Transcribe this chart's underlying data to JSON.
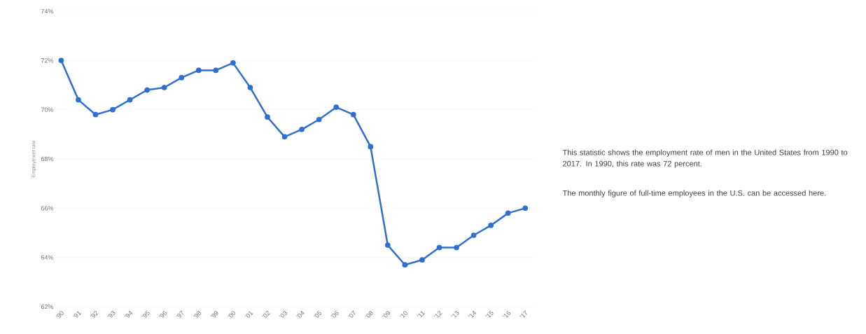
{
  "chart_data": {
    "type": "line",
    "ylabel": "Employment rate",
    "categories": [
      "'90",
      "'91",
      "'92",
      "'93",
      "'94",
      "'95",
      "'96",
      "'97",
      "'98",
      "'99",
      "'00",
      "'01",
      "'02",
      "'03",
      "'04",
      "'05",
      "'06",
      "'07",
      "'08",
      "'09",
      "'10",
      "'11",
      "'12",
      "'13",
      "'14",
      "'15",
      "'16",
      "'17"
    ],
    "series": [
      {
        "color": "#2f6fd0",
        "values": [
          72.0,
          70.4,
          69.8,
          70.0,
          70.4,
          70.8,
          70.9,
          71.3,
          71.6,
          71.6,
          71.9,
          70.9,
          69.7,
          68.9,
          69.2,
          69.6,
          70.1,
          69.8,
          68.5,
          64.5,
          63.7,
          63.9,
          64.4,
          64.4,
          64.9,
          65.3,
          65.8,
          66.0
        ]
      }
    ],
    "ylim": [
      62,
      74
    ],
    "yticks": [
      {
        "value": 62,
        "label": "62%"
      },
      {
        "value": 64,
        "label": "64%"
      },
      {
        "value": 66,
        "label": "66%"
      },
      {
        "value": 68,
        "label": "68%"
      },
      {
        "value": 70,
        "label": "70%"
      },
      {
        "value": 72,
        "label": "72%"
      },
      {
        "value": 74,
        "label": "74%"
      }
    ],
    "grid": "y",
    "marker": "circle",
    "line_style": "solid",
    "annotations": [
      "This statistic shows the employment rate of men in the United States from 1990 to 2017. In 1990, this rate was 72 percent.",
      "The monthly figure of full-time employees in the U.S. can be accessed here."
    ]
  }
}
